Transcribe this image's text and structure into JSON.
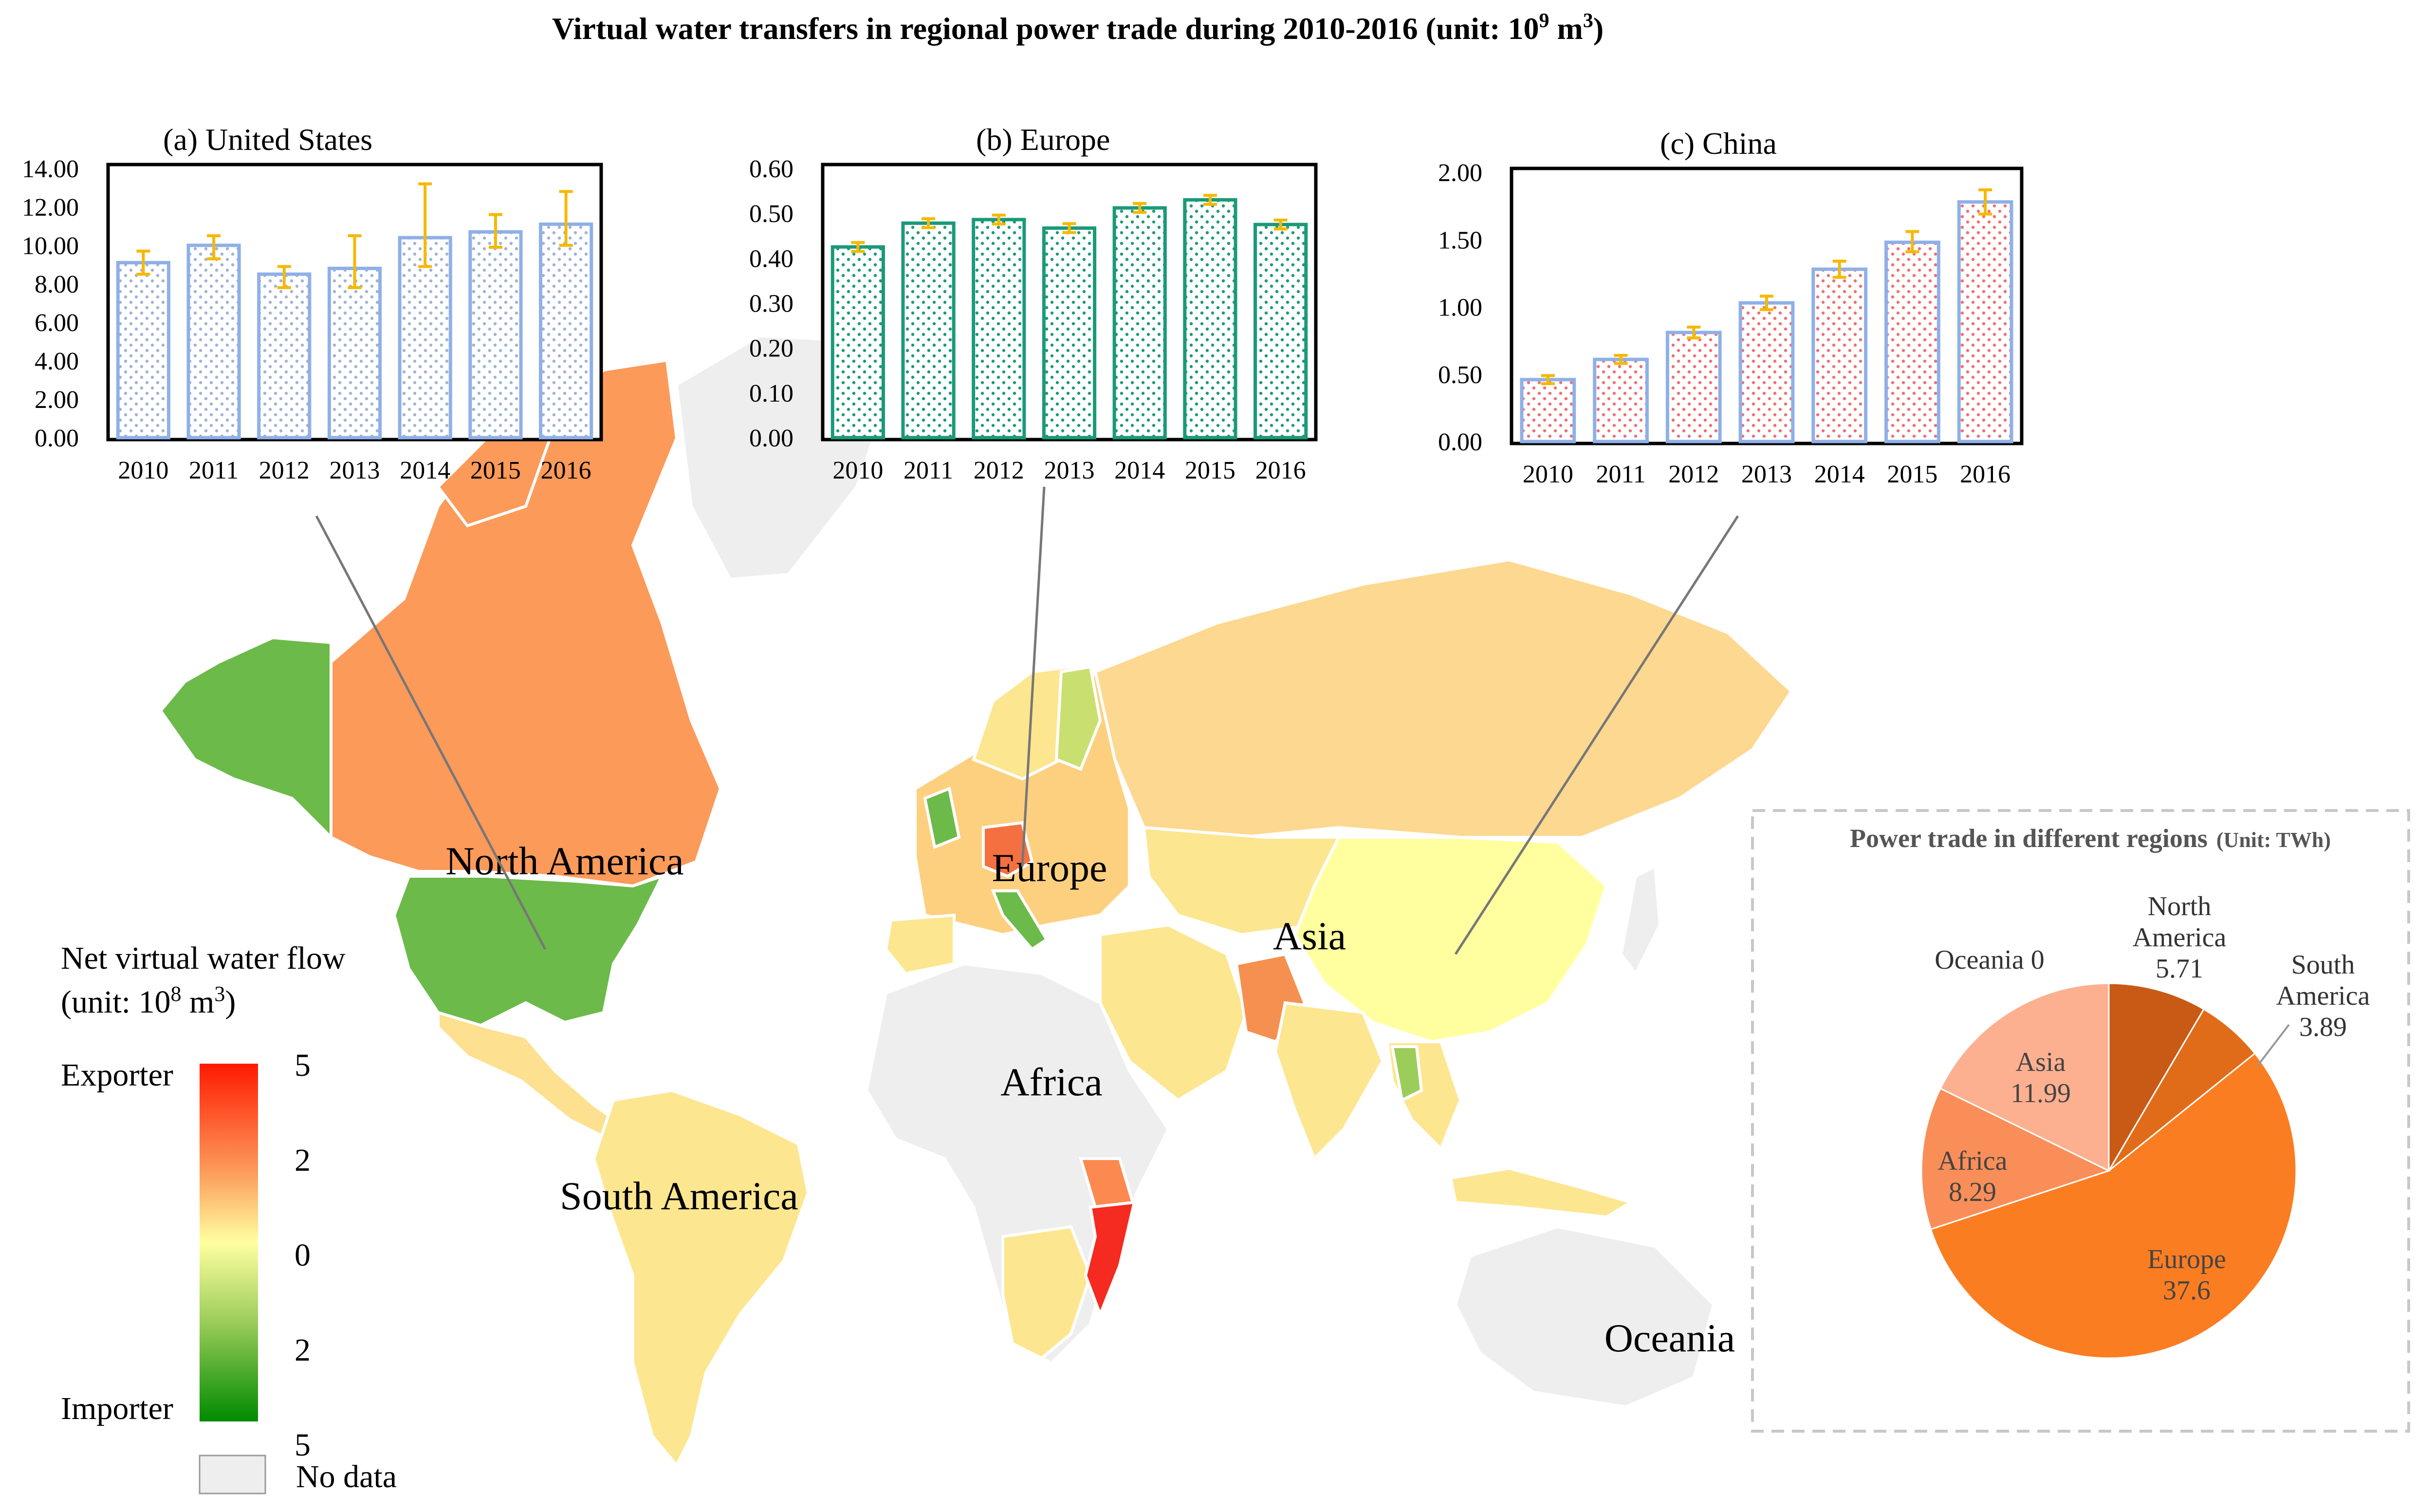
{
  "title_main": "Virtual water transfers in regional power trade during 2010-2016 (unit: 10",
  "title_exp": "9",
  "title_mid": " m",
  "title_exp2": "3",
  "title_end": ")",
  "colors": {
    "us_bar": "#8fb0e8",
    "us_dot": "#9fb3d6",
    "eu_bar": "#1a9a78",
    "eu_dot": "#1a9a78",
    "cn_bar": "#8fb0e8",
    "cn_dot": "#f07070",
    "error": "#f5b800",
    "exporter_top": "#ff0000",
    "neutral": "#ffffa0",
    "importer_bottom": "#008800",
    "no_data": "#eeeeee",
    "pie": [
      "#c85a16",
      "#e06c1a",
      "#fb7d22",
      "#f98e58",
      "#fcb090",
      "#f5c6a8"
    ]
  },
  "chart_data": [
    {
      "type": "bar",
      "label_prefix": "(a)",
      "label_name": "United States",
      "categories": [
        "2010",
        "2011",
        "2012",
        "2013",
        "2014",
        "2015",
        "2016"
      ],
      "values": [
        9.1,
        10.0,
        8.5,
        8.8,
        10.4,
        10.7,
        11.1
      ],
      "error_low": [
        8.5,
        9.3,
        7.8,
        7.8,
        8.9,
        9.9,
        10.0
      ],
      "error_high": [
        9.7,
        10.5,
        8.9,
        10.5,
        13.2,
        11.6,
        12.8
      ],
      "ylim": [
        0,
        14
      ],
      "yticks": [
        "0.00",
        "2.00",
        "4.00",
        "6.00",
        "8.00",
        "10.00",
        "12.00",
        "14.00"
      ]
    },
    {
      "type": "bar",
      "label_prefix": "(b)",
      "label_name": "Europe",
      "categories": [
        "2010",
        "2011",
        "2012",
        "2013",
        "2014",
        "2015",
        "2016"
      ],
      "values": [
        0.425,
        0.478,
        0.486,
        0.467,
        0.512,
        0.53,
        0.475
      ],
      "error_low": [
        0.415,
        0.468,
        0.476,
        0.457,
        0.502,
        0.52,
        0.465
      ],
      "error_high": [
        0.435,
        0.488,
        0.496,
        0.477,
        0.522,
        0.54,
        0.485
      ],
      "ylim": [
        0,
        0.6
      ],
      "yticks": [
        "0.00",
        "0.10",
        "0.20",
        "0.30",
        "0.40",
        "0.50",
        "0.60"
      ]
    },
    {
      "type": "bar",
      "label_prefix": "(c)",
      "label_name": "China",
      "categories": [
        "2010",
        "2011",
        "2012",
        "2013",
        "2014",
        "2015",
        "2016"
      ],
      "values": [
        0.46,
        0.61,
        0.81,
        1.03,
        1.28,
        1.48,
        1.78
      ],
      "error_low": [
        0.43,
        0.58,
        0.77,
        0.98,
        1.22,
        1.41,
        1.69
      ],
      "error_high": [
        0.49,
        0.64,
        0.85,
        1.08,
        1.34,
        1.56,
        1.87
      ],
      "ylim": [
        0,
        2
      ],
      "yticks": [
        "0.00",
        "0.50",
        "1.00",
        "1.50",
        "2.00"
      ]
    },
    {
      "type": "pie",
      "title": "Power trade in different regions",
      "unit": "(Unit: TWh)",
      "slices": [
        {
          "name": "North America",
          "name1": "North",
          "name2": "America",
          "value": 5.71,
          "display": "5.71"
        },
        {
          "name": "South America",
          "name1": "South",
          "name2": "America",
          "value": 3.89,
          "display": "3.89"
        },
        {
          "name": "Europe",
          "value": 37.6,
          "display": "37.6"
        },
        {
          "name": "Africa",
          "value": 8.29,
          "display": "8.29"
        },
        {
          "name": "Asia",
          "value": 11.99,
          "display": "11.99"
        },
        {
          "name": "Oceania",
          "value": 0,
          "display": "0"
        }
      ]
    }
  ],
  "map": {
    "region_labels": [
      "North America",
      "Europe",
      "Asia",
      "Africa",
      "South America",
      "Oceania"
    ]
  },
  "legend": {
    "title_line1": "Net virtual water flow",
    "title_line2_pre": "(unit: 10",
    "title_line2_exp": "8",
    "title_line2_mid": " m",
    "title_line2_exp2": "3",
    "title_line2_end": ")",
    "exporter": "Exporter",
    "importer": "Importer",
    "ticks": [
      "5",
      "2",
      "0",
      "2",
      "5"
    ],
    "no_data": "No data"
  }
}
